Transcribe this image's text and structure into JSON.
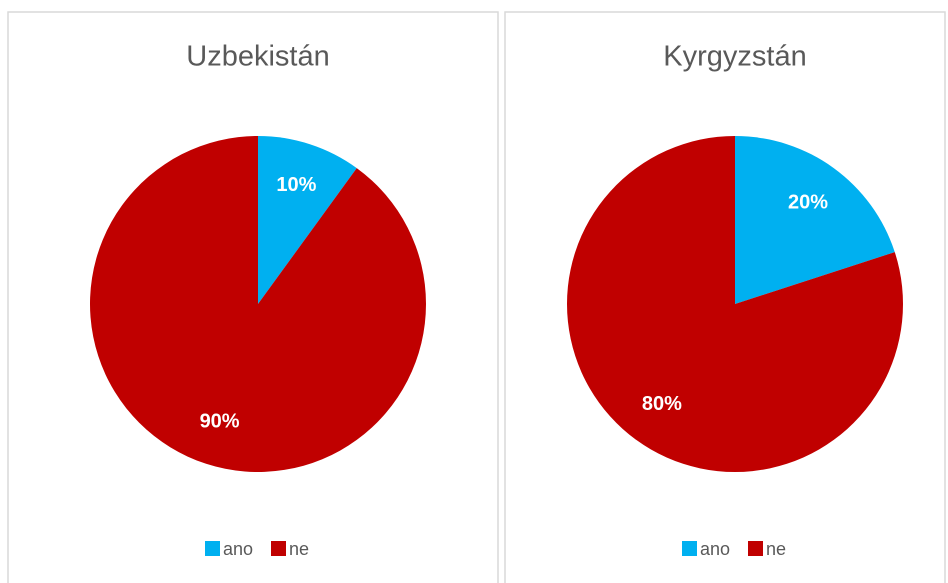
{
  "chart_data": [
    {
      "type": "pie",
      "title": "Uzbekistán",
      "categories": [
        "ano",
        "ne"
      ],
      "values": [
        10,
        90
      ],
      "value_labels": [
        "10%",
        "90%"
      ],
      "colors": [
        "#00b0f0",
        "#c00000"
      ],
      "legend": "bottom"
    },
    {
      "type": "pie",
      "title": "Kyrgyzstán",
      "categories": [
        "ano",
        "ne"
      ],
      "values": [
        20,
        80
      ],
      "value_labels": [
        "20%",
        "80%"
      ],
      "colors": [
        "#00b0f0",
        "#c00000"
      ],
      "legend": "bottom"
    }
  ]
}
